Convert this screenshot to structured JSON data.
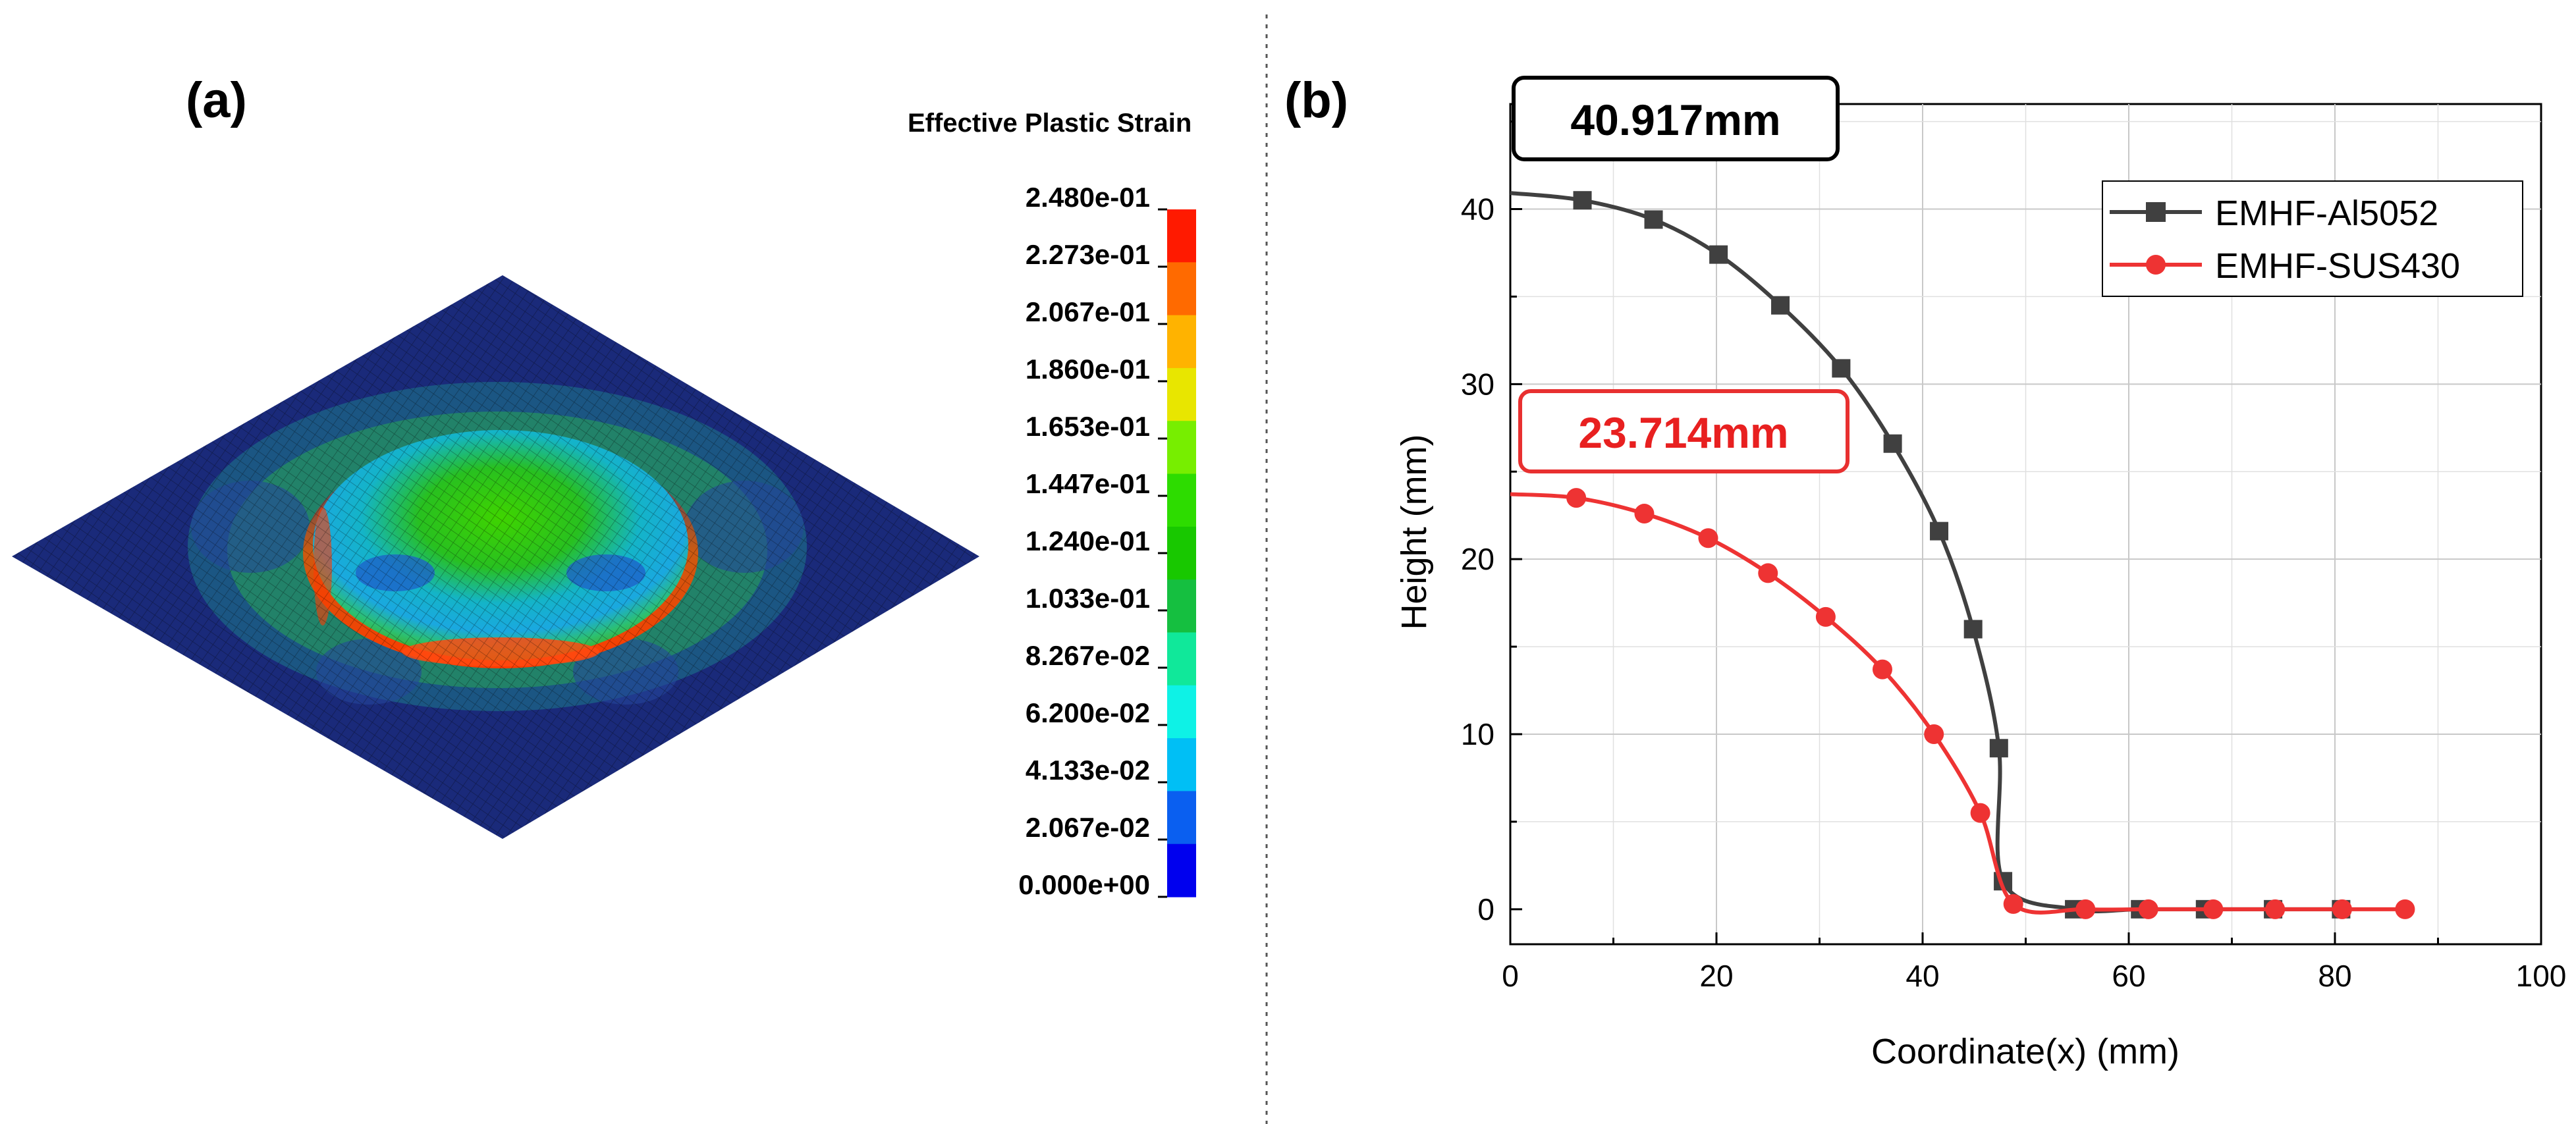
{
  "panel_a": {
    "label": "(a)",
    "colorbar": {
      "title": "Effective Plastic Strain",
      "ticks": [
        "2.480e-01",
        "2.273e-01",
        "2.067e-01",
        "1.860e-01",
        "1.653e-01",
        "1.447e-01",
        "1.240e-01",
        "1.033e-01",
        "8.267e-02",
        "6.200e-02",
        "4.133e-02",
        "2.067e-02",
        "0.000e+00"
      ],
      "colors": [
        "#ff1a00",
        "#ff6a00",
        "#ffb300",
        "#e8e600",
        "#77ee00",
        "#2ddc00",
        "#18c800",
        "#15bf40",
        "#10e89a",
        "#0ef2e6",
        "#00bff5",
        "#0a5ff0",
        "#0000ee"
      ]
    }
  },
  "panel_b": {
    "label": "(b)",
    "annotation_black": "40.917mm",
    "annotation_red": "23.714mm",
    "legend": [
      "EMHF-Al5052",
      "EMHF-SUS430"
    ]
  },
  "chart_data": {
    "type": "line",
    "xlabel": "Coordinate(x) (mm)",
    "ylabel": "Height (mm)",
    "xlim": [
      0,
      100
    ],
    "ylim": [
      -2,
      46
    ],
    "xticks": [
      0,
      20,
      40,
      60,
      80,
      100
    ],
    "yticks": [
      0,
      10,
      20,
      30,
      40
    ],
    "grid": true,
    "legend_position": "top-right",
    "series": [
      {
        "name": "EMHF-Al5052",
        "color": "#404040",
        "marker": "square",
        "x": [
          0,
          7.0,
          13.9,
          20.2,
          26.2,
          32.1,
          37.1,
          41.6,
          44.9,
          47.4,
          47.8,
          54.7,
          61.1,
          67.4,
          74.0,
          80.6
        ],
        "y": [
          40.917,
          40.5,
          39.4,
          37.4,
          34.5,
          30.9,
          26.6,
          21.6,
          16.0,
          9.2,
          1.6,
          0,
          0,
          0,
          0,
          0
        ]
      },
      {
        "name": "EMHF-SUS430",
        "color": "#ee3333",
        "marker": "circle",
        "x": [
          0,
          6.4,
          13.0,
          19.2,
          25.0,
          30.6,
          36.1,
          41.1,
          45.6,
          48.8,
          55.8,
          61.9,
          68.2,
          74.2,
          80.7,
          86.8
        ],
        "y": [
          23.714,
          23.5,
          22.6,
          21.2,
          19.2,
          16.7,
          13.7,
          10.0,
          5.5,
          0.3,
          0,
          0,
          0,
          0,
          0,
          0
        ]
      }
    ]
  }
}
